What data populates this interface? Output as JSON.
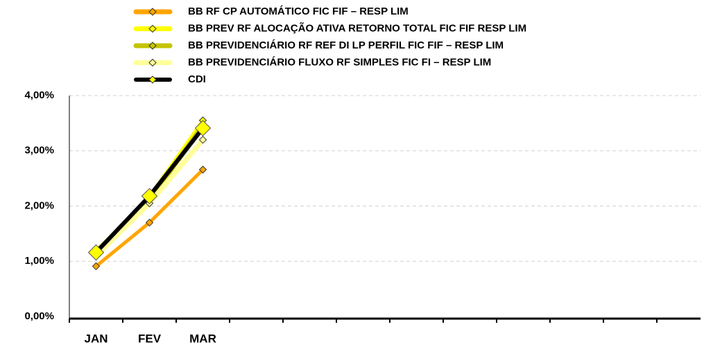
{
  "chart_data": {
    "type": "line",
    "categories": [
      "JAN",
      "FEV",
      "MAR",
      null,
      null,
      null,
      null,
      null,
      null,
      null,
      null,
      null
    ],
    "series": [
      {
        "name": "BB RF CP AUTOMÁTICO FIC FIF – RESP LIM",
        "color": "#ffa500",
        "values": [
          0.91,
          1.7,
          2.66,
          null,
          null,
          null,
          null,
          null,
          null,
          null,
          null,
          null
        ]
      },
      {
        "name": "BB PREV RF ALOCAÇÃO ATIVA RETORNO TOTAL FIC FIF RESP LIM",
        "color": "#ffff00",
        "values": [
          1.18,
          2.17,
          3.55,
          null,
          null,
          null,
          null,
          null,
          null,
          null,
          null,
          null
        ]
      },
      {
        "name": "BB PREVIDENCIÁRIO RF REF DI LP PERFIL FIC FIF – RESP LIM",
        "color": "#c4c400",
        "values": [
          1.17,
          2.12,
          3.45,
          null,
          null,
          null,
          null,
          null,
          null,
          null,
          null,
          null
        ]
      },
      {
        "name": "BB PREVIDENCIÁRIO FLUXO RF SIMPLES FIC FI – RESP LIM",
        "color": "#ffff99",
        "values": [
          1.1,
          2.05,
          3.2,
          null,
          null,
          null,
          null,
          null,
          null,
          null,
          null,
          null
        ]
      },
      {
        "name": "CDI",
        "color": "#000000",
        "values": [
          1.16,
          2.18,
          3.41,
          null,
          null,
          null,
          null,
          null,
          null,
          null,
          null,
          null
        ]
      }
    ],
    "ylim": [
      0,
      4
    ],
    "yticks": [
      {
        "value": 0,
        "label": "0,00%"
      },
      {
        "value": 1,
        "label": "1,00%"
      },
      {
        "value": 2,
        "label": "2,00%"
      },
      {
        "value": 3,
        "label": "3,00%"
      },
      {
        "value": 4,
        "label": "4,00%"
      }
    ],
    "grid": true,
    "legend": "top"
  }
}
